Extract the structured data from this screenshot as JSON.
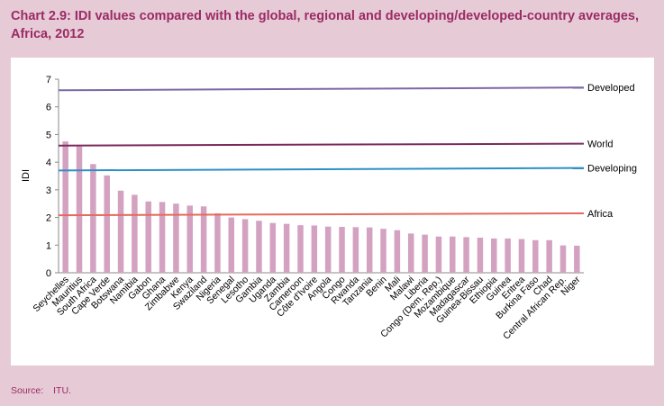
{
  "title": "Chart 2.9: IDI values compared with the global, regional and developing/developed-country averages, Africa, 2012",
  "source": {
    "label": "Source:",
    "value": "ITU."
  },
  "chart_data": {
    "type": "bar",
    "ylabel": "IDI",
    "ylim": [
      0,
      7
    ],
    "yticks": [
      0,
      1,
      2,
      3,
      4,
      5,
      6,
      7
    ],
    "grid": false,
    "bar_color": "#d4a2c1",
    "categories": [
      "Seychelles",
      "Mauritius",
      "South Africa",
      "Cape Verde",
      "Botswana",
      "Namibia",
      "Gabon",
      "Ghana",
      "Zimbabwe",
      "Kenya",
      "Swaziland",
      "Nigeria",
      "Senegal",
      "Lesotho",
      "Gambia",
      "Uganda",
      "Zambia",
      "Cameroon",
      "Côte d'Ivoire",
      "Angola",
      "Congo",
      "Rwanda",
      "Tanzania",
      "Benin",
      "Mali",
      "Malawi",
      "Liberia",
      "Congo (Dem. Rep.)",
      "Mozambique",
      "Madagascar",
      "Guinea-Bissau",
      "Ethiopia",
      "Guinea",
      "Eritrea",
      "Burkina Faso",
      "Chad",
      "Central African Rep.",
      "Niger"
    ],
    "values": [
      4.75,
      4.57,
      3.93,
      3.52,
      2.97,
      2.82,
      2.58,
      2.56,
      2.5,
      2.43,
      2.4,
      2.15,
      2.0,
      1.94,
      1.88,
      1.8,
      1.77,
      1.72,
      1.71,
      1.67,
      1.66,
      1.65,
      1.64,
      1.59,
      1.54,
      1.42,
      1.38,
      1.31,
      1.31,
      1.29,
      1.27,
      1.24,
      1.24,
      1.22,
      1.18,
      1.18,
      0.99,
      0.98
    ],
    "reference_lines": [
      {
        "name": "Developed",
        "value_start": 6.6,
        "value_end": 6.7,
        "color": "#7a68a8"
      },
      {
        "name": "World",
        "value_start": 4.6,
        "value_end": 4.67,
        "color": "#7b2a5b"
      },
      {
        "name": "Developing",
        "value_start": 3.7,
        "value_end": 3.79,
        "color": "#2d8fc4"
      },
      {
        "name": "Africa",
        "value_start": 2.08,
        "value_end": 2.15,
        "color": "#e36a5c"
      }
    ]
  }
}
